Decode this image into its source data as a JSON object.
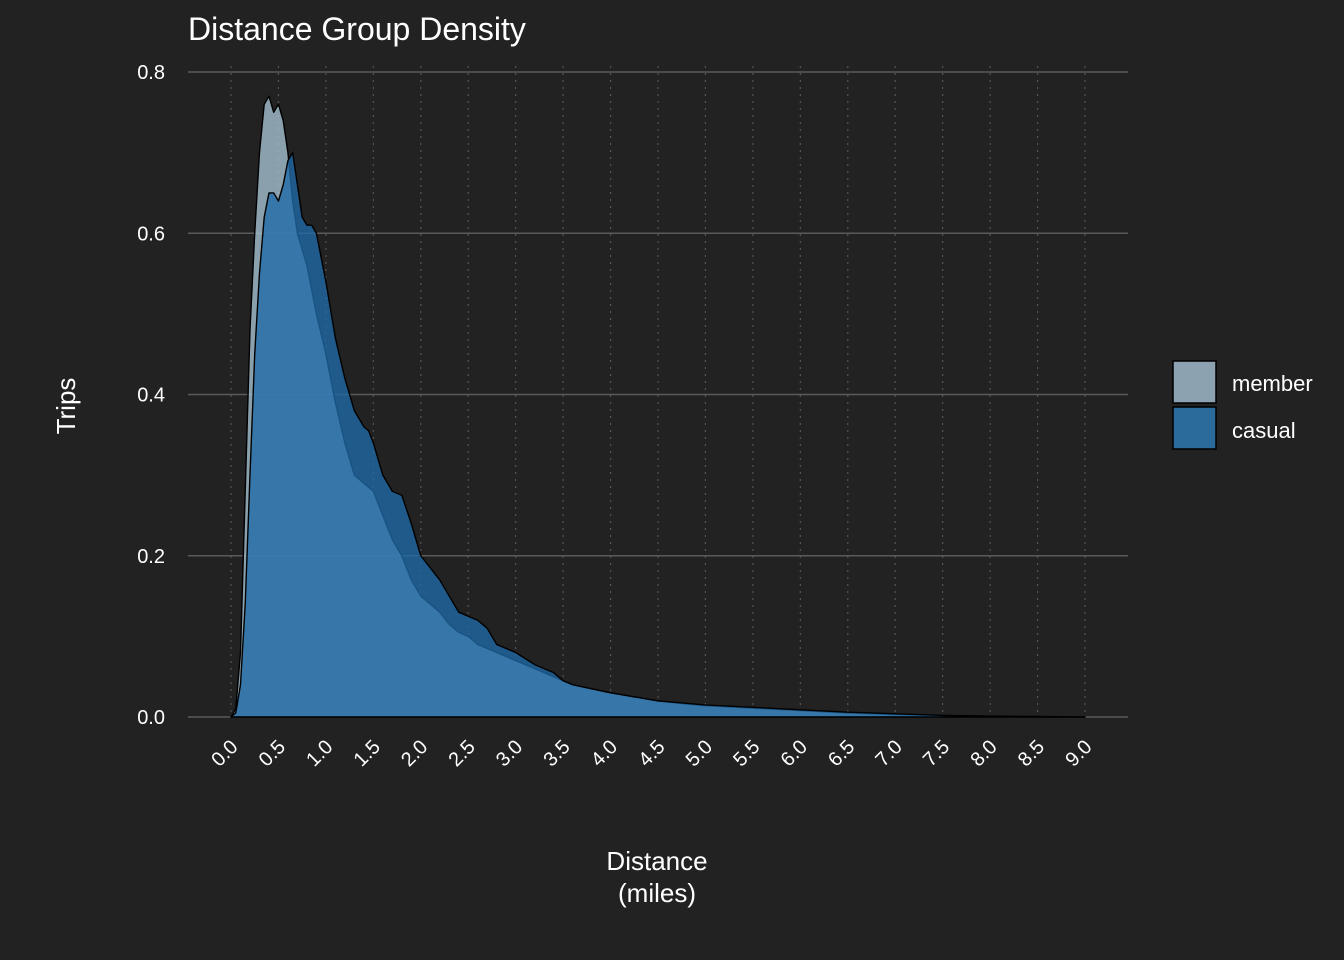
{
  "chart_data": {
    "type": "area",
    "title": "Distance Group Density",
    "xlabel": [
      "Distance",
      "(miles)"
    ],
    "ylabel": "Trips",
    "xlim": [
      0,
      9
    ],
    "ylim": [
      0,
      0.8
    ],
    "x_ticks": [
      "0.0",
      "0.5",
      "1.0",
      "1.5",
      "2.0",
      "2.5",
      "3.0",
      "3.5",
      "4.0",
      "4.5",
      "5.0",
      "5.5",
      "6.0",
      "6.5",
      "7.0",
      "7.5",
      "8.0",
      "8.5",
      "9.0"
    ],
    "y_ticks": [
      "0.0",
      "0.2",
      "0.4",
      "0.6",
      "0.8"
    ],
    "grid": true,
    "legend_position": "right",
    "series": [
      {
        "name": "member",
        "color": "#8da2b0",
        "x": [
          0,
          0.05,
          0.1,
          0.15,
          0.2,
          0.25,
          0.3,
          0.35,
          0.4,
          0.45,
          0.5,
          0.55,
          0.6,
          0.65,
          0.7,
          0.75,
          0.8,
          0.85,
          0.9,
          1.0,
          1.1,
          1.2,
          1.3,
          1.4,
          1.5,
          1.6,
          1.7,
          1.8,
          1.9,
          2.0,
          2.1,
          2.2,
          2.3,
          2.4,
          2.5,
          2.6,
          2.7,
          2.8,
          2.9,
          3.0,
          3.2,
          3.4,
          3.5,
          3.6,
          3.8,
          4.0,
          4.2,
          4.5,
          4.8,
          5.0,
          5.5,
          6.0,
          6.5,
          7.0,
          7.5,
          8.0,
          8.5,
          9.0
        ],
        "y": [
          0.0,
          0.01,
          0.08,
          0.28,
          0.48,
          0.6,
          0.7,
          0.76,
          0.77,
          0.75,
          0.76,
          0.74,
          0.7,
          0.64,
          0.6,
          0.58,
          0.56,
          0.53,
          0.5,
          0.45,
          0.39,
          0.34,
          0.3,
          0.29,
          0.28,
          0.25,
          0.22,
          0.2,
          0.17,
          0.15,
          0.14,
          0.13,
          0.115,
          0.105,
          0.1,
          0.09,
          0.085,
          0.08,
          0.075,
          0.07,
          0.06,
          0.05,
          0.045,
          0.04,
          0.035,
          0.03,
          0.026,
          0.02,
          0.016,
          0.014,
          0.011,
          0.008,
          0.005,
          0.003,
          0.002,
          0.001,
          0.0005,
          0.0
        ]
      },
      {
        "name": "casual",
        "color": "#2a6b9c",
        "x": [
          0,
          0.05,
          0.1,
          0.15,
          0.2,
          0.25,
          0.3,
          0.35,
          0.4,
          0.45,
          0.5,
          0.55,
          0.6,
          0.65,
          0.7,
          0.75,
          0.8,
          0.85,
          0.9,
          0.95,
          1.0,
          1.1,
          1.2,
          1.3,
          1.4,
          1.45,
          1.5,
          1.6,
          1.7,
          1.8,
          1.9,
          2.0,
          2.1,
          2.2,
          2.3,
          2.4,
          2.5,
          2.6,
          2.7,
          2.8,
          2.9,
          3.0,
          3.2,
          3.4,
          3.5,
          3.6,
          3.8,
          4.0,
          4.2,
          4.5,
          4.8,
          5.0,
          5.5,
          6.0,
          6.5,
          7.0,
          7.5,
          8.0,
          8.5,
          9.0
        ],
        "y": [
          0.0,
          0.005,
          0.04,
          0.14,
          0.3,
          0.45,
          0.55,
          0.62,
          0.65,
          0.65,
          0.64,
          0.66,
          0.69,
          0.7,
          0.66,
          0.62,
          0.61,
          0.61,
          0.6,
          0.57,
          0.54,
          0.47,
          0.42,
          0.38,
          0.36,
          0.355,
          0.34,
          0.3,
          0.28,
          0.275,
          0.24,
          0.2,
          0.185,
          0.17,
          0.15,
          0.13,
          0.125,
          0.12,
          0.11,
          0.09,
          0.085,
          0.08,
          0.065,
          0.055,
          0.045,
          0.04,
          0.035,
          0.03,
          0.026,
          0.02,
          0.017,
          0.015,
          0.012,
          0.009,
          0.006,
          0.004,
          0.002,
          0.001,
          0.0005,
          0.0
        ]
      }
    ]
  }
}
